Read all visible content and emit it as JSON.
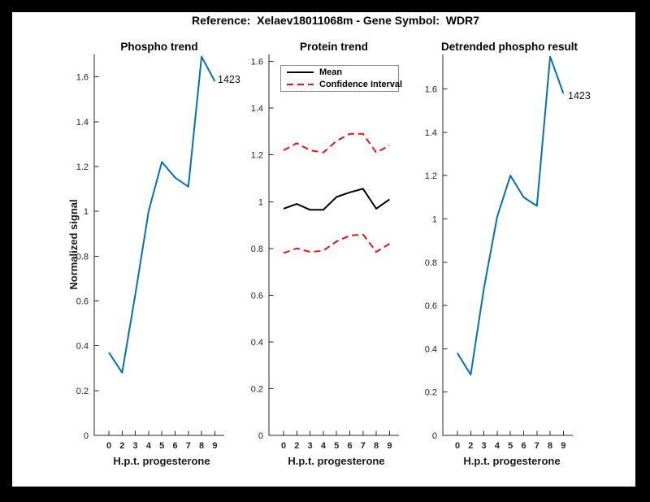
{
  "window": {
    "background": "#000000",
    "figure_background": "#ffffff"
  },
  "header": {
    "title": "Reference:  Xelaev18011068m - Gene Symbol:  WDR7"
  },
  "x_axis": {
    "label": "H.p.t. progesterone",
    "tick_labels": [
      "0",
      "2",
      "3",
      "4",
      "5",
      "6",
      "7",
      "8",
      "9"
    ]
  },
  "y_axis": {
    "label": "Normalized signal",
    "tick_values": [
      0,
      0.2,
      0.4,
      0.6,
      0.8,
      1,
      1.2,
      1.4,
      1.6
    ],
    "tick_labels": [
      "0",
      "0.2",
      "0.4",
      "0.6",
      "0.8",
      "1",
      "1.2",
      "1.4",
      "1.6"
    ]
  },
  "legend": {
    "position": "top-inside-middle-plot",
    "entries": [
      {
        "label": "Mean",
        "color": "#000000",
        "style": "solid"
      },
      {
        "label": "Confidence Interval",
        "color": "#ee1111",
        "style": "dashed"
      }
    ]
  },
  "colors": {
    "line_blue": "#0072BD",
    "ci_red": "#ee1111",
    "mean_black": "#000000",
    "axis": "#262626"
  },
  "chart_data": [
    {
      "type": "line",
      "title": "Phospho trend",
      "xlabel": "H.p.t. progesterone",
      "ylabel": "Normalized signal",
      "x_labels": [
        "0",
        "2",
        "3",
        "4",
        "5",
        "6",
        "7",
        "8",
        "9"
      ],
      "ylim": [
        0,
        1.7
      ],
      "grid": false,
      "annotation": "1423",
      "series": [
        {
          "name": "phospho",
          "color": "#0072BD",
          "style": "solid",
          "values": [
            0.37,
            0.28,
            0.63,
            1.0,
            1.22,
            1.15,
            1.11,
            1.69,
            1.58
          ]
        }
      ]
    },
    {
      "type": "line",
      "title": "Protein trend",
      "xlabel": "H.p.t. progesterone",
      "x_labels": [
        "0",
        "2",
        "3",
        "4",
        "5",
        "6",
        "7",
        "8",
        "9"
      ],
      "ylim": [
        0,
        1.63
      ],
      "grid": false,
      "series": [
        {
          "name": "upper-ci",
          "color": "#ee1111",
          "style": "dashed",
          "values": [
            1.22,
            1.25,
            1.22,
            1.21,
            1.26,
            1.29,
            1.29,
            1.21,
            1.24
          ]
        },
        {
          "name": "mean",
          "color": "#000000",
          "style": "solid",
          "values": [
            0.97,
            0.99,
            0.965,
            0.965,
            1.02,
            1.04,
            1.055,
            0.97,
            1.01
          ]
        },
        {
          "name": "lower-ci",
          "color": "#ee1111",
          "style": "dashed",
          "values": [
            0.78,
            0.8,
            0.785,
            0.79,
            0.83,
            0.855,
            0.86,
            0.785,
            0.82
          ]
        }
      ]
    },
    {
      "type": "line",
      "title": "Detrended phospho result",
      "xlabel": "H.p.t. progesterone",
      "x_labels": [
        "0",
        "2",
        "3",
        "4",
        "5",
        "6",
        "7",
        "8",
        "9"
      ],
      "ylim": [
        0,
        1.76
      ],
      "grid": false,
      "annotation": "1423",
      "series": [
        {
          "name": "detrended",
          "color": "#0072BD",
          "style": "solid",
          "values": [
            0.38,
            0.28,
            0.68,
            1.01,
            1.2,
            1.1,
            1.06,
            1.75,
            1.58
          ]
        }
      ]
    }
  ]
}
